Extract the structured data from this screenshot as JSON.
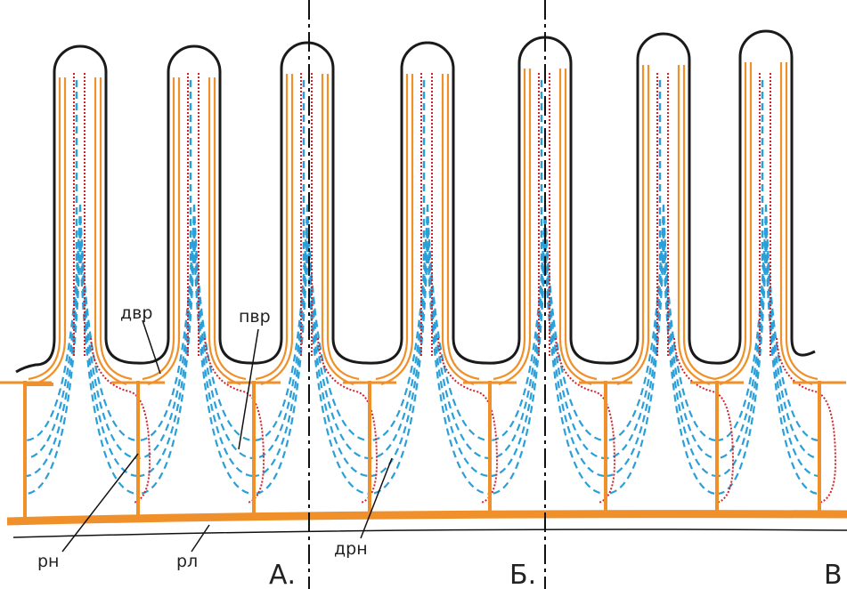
{
  "labels": [
    "двр",
    "пвр",
    "рн",
    "рл",
    "дрн"
  ],
  "sections": [
    "А.",
    "Б.",
    "В"
  ]
}
